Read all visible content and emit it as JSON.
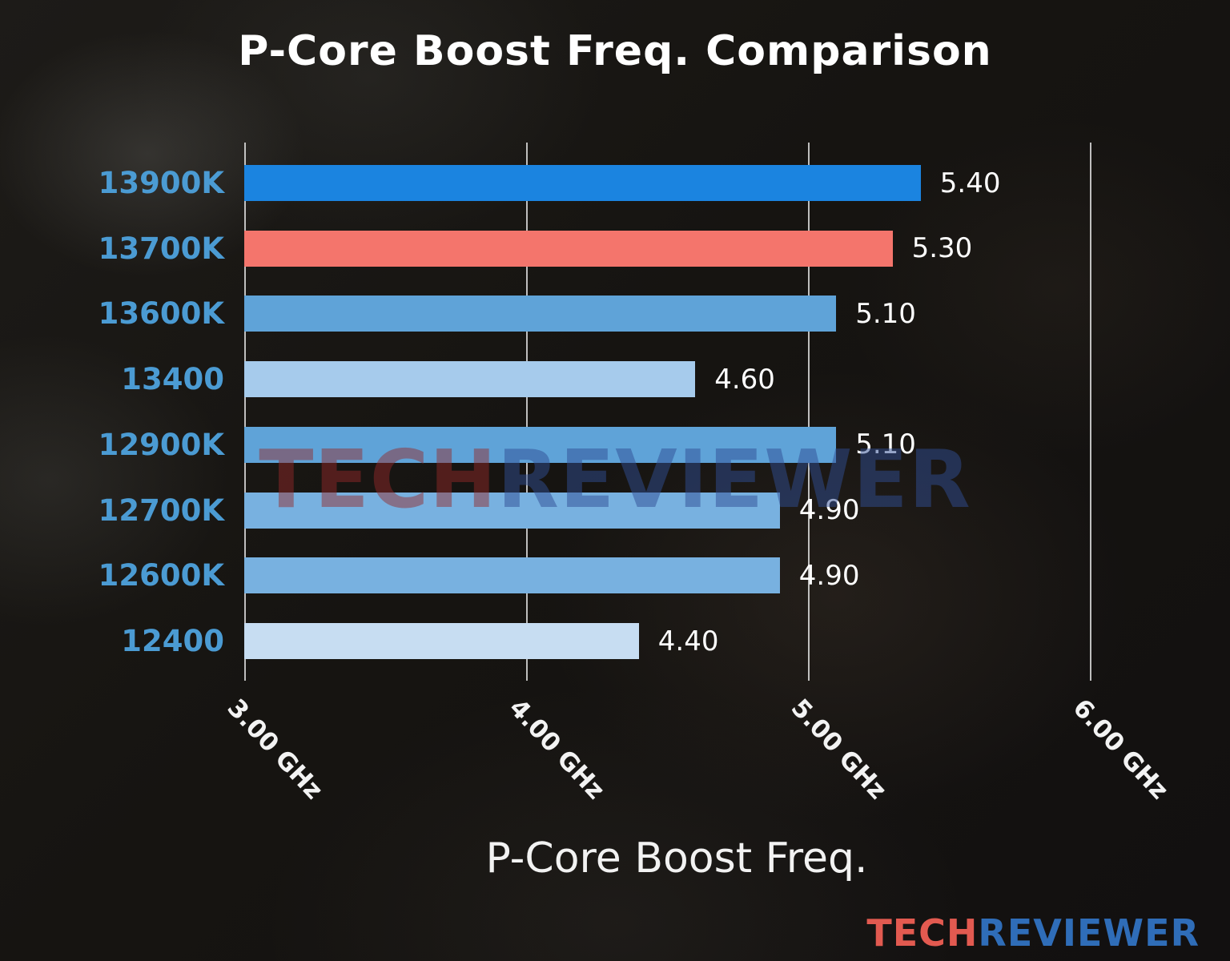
{
  "title": "P-Core Boost Freq. Comparison",
  "watermark": {
    "part1": "TECH",
    "part2": "REVIEWER"
  },
  "logo": {
    "part1": "TECH",
    "part2": "REVIEWER"
  },
  "chart_data": {
    "type": "bar",
    "orientation": "horizontal",
    "title": "P-Core Boost Freq. Comparison",
    "xlabel": "P-Core Boost Freq.",
    "categories": [
      "13900K",
      "13700K",
      "13600K",
      "13400",
      "12900K",
      "12700K",
      "12600K",
      "12400"
    ],
    "values": [
      5.4,
      5.3,
      5.1,
      4.6,
      5.1,
      4.9,
      4.9,
      4.4
    ],
    "value_labels": [
      "5.40",
      "5.30",
      "5.10",
      "4.60",
      "5.10",
      "4.90",
      "4.90",
      "4.40"
    ],
    "bar_colors": [
      "#1b84e0",
      "#f4756c",
      "#5fa3d8",
      "#a6cbec",
      "#5fa3d8",
      "#78b1e0",
      "#78b1e0",
      "#c7ddf2"
    ],
    "highlight_category": "13700K",
    "highlight_color": "#f4756c",
    "category_label_color": "#4b9bd3",
    "xlim": [
      3.0,
      6.0
    ],
    "xtick_values": [
      3.0,
      4.0,
      5.0,
      6.0
    ],
    "xticks": [
      "3.00 GHz",
      "4.00 GHz",
      "5.00 GHz",
      "6.00 GHz"
    ],
    "grid": true,
    "legend_position": "none"
  }
}
